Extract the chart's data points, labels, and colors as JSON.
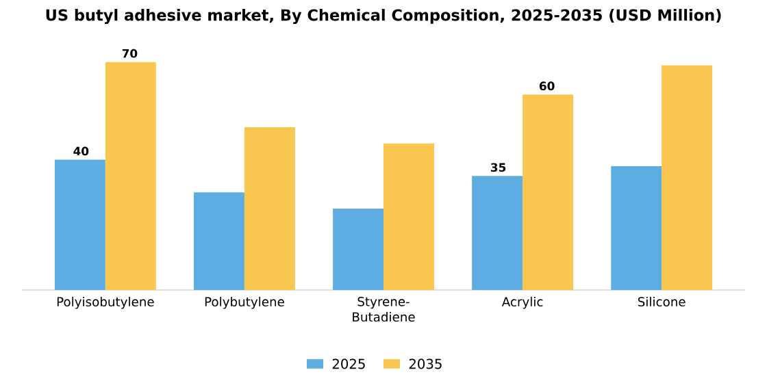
{
  "chart_data": {
    "type": "bar",
    "title": "US butyl adhesive market, By Chemical Composition, 2025-2035 (USD Million)",
    "categories": [
      "Polyisobutylene",
      "Polybutylene",
      "Styrene-Butadiene",
      "Acrylic",
      "Silicone"
    ],
    "series": [
      {
        "name": "2025",
        "color": "#5dade2",
        "values": [
          40,
          30,
          25,
          35,
          38
        ],
        "value_labels": [
          "40",
          null,
          null,
          "35",
          null
        ]
      },
      {
        "name": "2035",
        "color": "#f9c74f",
        "values": [
          70,
          50,
          45,
          60,
          69
        ],
        "value_labels": [
          "70",
          null,
          null,
          "60",
          null
        ]
      }
    ],
    "tick_labels": "x",
    "legend": "bottom"
  }
}
